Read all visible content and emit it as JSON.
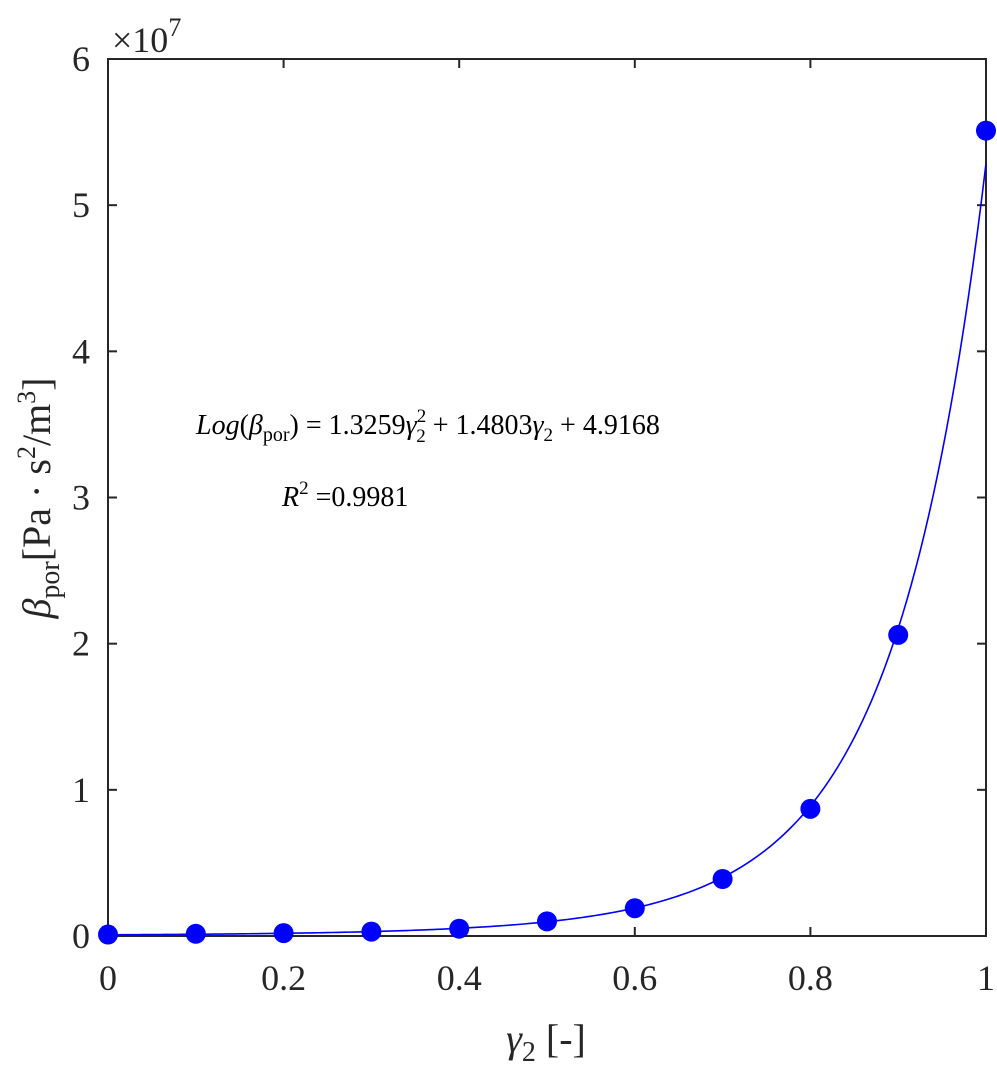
{
  "chart_data": {
    "type": "scatter",
    "title": "",
    "xlabel": {
      "symbol": "γ",
      "sub": "2",
      "unit": " [-]"
    },
    "ylabel": {
      "symbol": "β",
      "sub": "por",
      "unit_a": "[Pa · s",
      "sup_a": "2",
      "unit_b": "/m",
      "sup_b": "3",
      "unit_c": "]"
    },
    "xlim": [
      0,
      1
    ],
    "ylim": [
      0,
      60000000
    ],
    "x_ticks": [
      0,
      0.2,
      0.4,
      0.6,
      0.8,
      1
    ],
    "x_tick_labels": [
      "0",
      "0.2",
      "0.4",
      "0.6",
      "0.8",
      "1"
    ],
    "y_ticks": [
      0,
      10000000,
      20000000,
      30000000,
      40000000,
      50000000,
      60000000
    ],
    "y_tick_labels": [
      "0",
      "1",
      "2",
      "3",
      "4",
      "5",
      "6"
    ],
    "y_exponent": {
      "prefix": "×10",
      "power": "7"
    },
    "grid": false,
    "color": "#0000ff",
    "points": {
      "x": [
        0,
        0.1,
        0.2,
        0.3,
        0.4,
        0.5,
        0.6,
        0.7,
        0.8,
        0.9,
        1.0
      ],
      "y": [
        100000,
        150000,
        200000,
        300000,
        500000,
        1000000,
        1900000,
        3900000,
        8700000,
        20600000,
        55100000
      ]
    },
    "fit": {
      "form": "log10",
      "coefficients": [
        1.3259,
        1.4803,
        4.9168
      ]
    },
    "annotations": {
      "equation": {
        "lhs_italic": "Log",
        "open": "(",
        "beta": "β",
        "beta_sub": "por",
        "close": ") = 1.3259",
        "gamma1": "γ",
        "gamma1_sub": "2",
        "gamma1_sup": "2",
        "mid": " + 1.4803",
        "gamma2": "γ",
        "gamma2_sub": "2",
        "tail": " + 4.9168"
      },
      "r2": {
        "r": "R",
        "sup": "2",
        "value": " =0.9981"
      }
    }
  }
}
